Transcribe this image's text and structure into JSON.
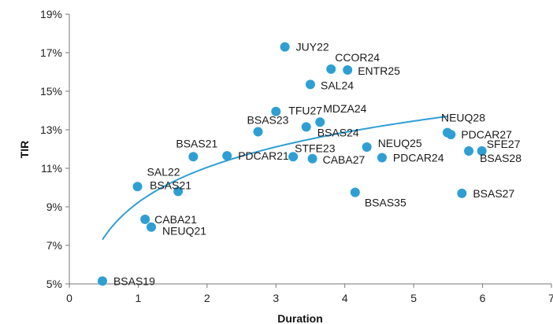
{
  "chart_data": {
    "type": "scatter",
    "xlabel": "Duration",
    "ylabel": "TIR",
    "xlim": [
      0,
      7
    ],
    "ylim": [
      5,
      19
    ],
    "xticks": [
      "0",
      "1",
      "2",
      "3",
      "4",
      "5",
      "6",
      "7"
    ],
    "yticks": [
      "5%",
      "7%",
      "9%",
      "11%",
      "13%",
      "15%",
      "17%",
      "19%"
    ],
    "grid": false,
    "legend": "none",
    "point_color": "#2f9fd3",
    "trend_color": "#2f9fd3",
    "points": [
      {
        "label": "BSAS19",
        "x": 0.48,
        "y": 5.15
      },
      {
        "label": "SAL22",
        "x": 0.99,
        "y": 10.05
      },
      {
        "label": "BSAS21",
        "x": 1.58,
        "y": 9.8
      },
      {
        "label": "CABA21",
        "x": 1.1,
        "y": 8.35
      },
      {
        "label": "NEUQ21",
        "x": 1.19,
        "y": 7.95
      },
      {
        "label": "BSAS21",
        "x": 1.8,
        "y": 11.6
      },
      {
        "label": "PDCAR21",
        "x": 2.29,
        "y": 11.65
      },
      {
        "label": "BSAS23",
        "x": 2.74,
        "y": 12.9
      },
      {
        "label": "TFU27",
        "x": 3.0,
        "y": 13.95
      },
      {
        "label": "JUY22",
        "x": 3.13,
        "y": 17.3
      },
      {
        "label": "BSAS24",
        "x": 3.44,
        "y": 13.15
      },
      {
        "label": "MDZA24",
        "x": 3.64,
        "y": 13.4
      },
      {
        "label": "STFE23",
        "x": 3.25,
        "y": 11.6
      },
      {
        "label": "CABA27",
        "x": 3.53,
        "y": 11.5
      },
      {
        "label": "SAL24",
        "x": 3.5,
        "y": 15.35
      },
      {
        "label": "CCOR24",
        "x": 3.8,
        "y": 16.15
      },
      {
        "label": "ENTR25",
        "x": 4.04,
        "y": 16.1
      },
      {
        "label": "NEUQ25",
        "x": 4.32,
        "y": 12.1
      },
      {
        "label": "PDCAR24",
        "x": 4.54,
        "y": 11.55
      },
      {
        "label": "BSAS35",
        "x": 4.15,
        "y": 9.75
      },
      {
        "label": "NEUQ28",
        "x": 5.49,
        "y": 12.85
      },
      {
        "label": "PDCAR27",
        "x": 5.54,
        "y": 12.75
      },
      {
        "label": "SFE27",
        "x": 5.99,
        "y": 11.9
      },
      {
        "label": "BSAS28",
        "x": 5.8,
        "y": 11.9
      },
      {
        "label": "BSAS27",
        "x": 5.7,
        "y": 9.7
      }
    ],
    "trendline": {
      "type": "logarithmic",
      "x_range": [
        0.48,
        5.5
      ],
      "y_start": 7.3,
      "y_end": 13.7
    }
  }
}
